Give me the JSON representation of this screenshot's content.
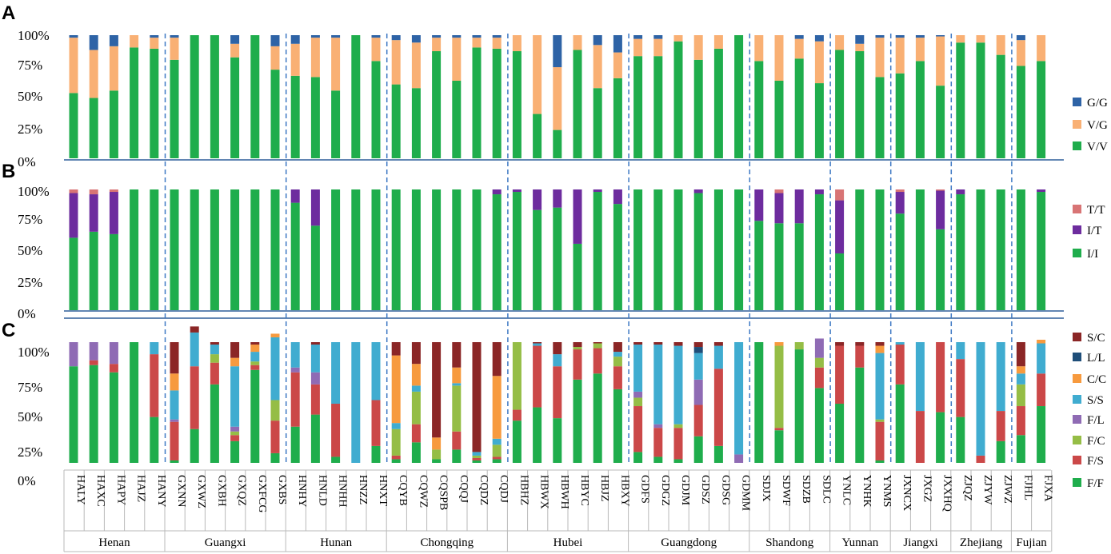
{
  "chart_data": {
    "type": "bar",
    "stacked": true,
    "colors": {
      "G/G": "#2e63a6",
      "V/G": "#f9b074",
      "V/V": "#1fad4c",
      "T/T": "#d87475",
      "I/T": "#6d2c9e",
      "I/I": "#1fad4c",
      "S/C": "#8b2626",
      "L/L": "#1f4e79",
      "C/C": "#f79a3e",
      "S/S": "#40acd0",
      "F/L": "#8f6bb4",
      "F/C": "#95bd46",
      "F/S": "#cb4848",
      "F/F": "#1fad4c"
    },
    "categories": [
      "HALY",
      "HAXC",
      "HAPY",
      "HAJZ",
      "HANY",
      "GXNN",
      "GXWZ",
      "GXBH",
      "GXQZ",
      "GXFCG",
      "GXBS",
      "HNHY",
      "HNLD",
      "HNHH",
      "HNZZ",
      "HNXT",
      "CQYB",
      "CQWZ",
      "CQSPB",
      "CQQJ",
      "CQDZ",
      "CQDJ",
      "HBHZ",
      "HBWX",
      "HBWH",
      "HBYC",
      "HBJZ",
      "HBXY",
      "GDFS",
      "GDGZ",
      "GDJM",
      "GDSZ",
      "GDSG",
      "GDMM",
      "SDJX",
      "SDWF",
      "SDZB",
      "SDLC",
      "YNLC",
      "YNHK",
      "YNMS",
      "JXNCX",
      "JXGZ",
      "JXXHQ",
      "ZJQZ",
      "ZJYW",
      "ZJWZ",
      "FJHL",
      "FJXA"
    ],
    "groups": [
      {
        "name": "Henan",
        "count": 5
      },
      {
        "name": "Guangxi",
        "count": 6
      },
      {
        "name": "Hunan",
        "count": 5
      },
      {
        "name": "Chongqing",
        "count": 6
      },
      {
        "name": "Hubei",
        "count": 6
      },
      {
        "name": "Guangdong",
        "count": 6
      },
      {
        "name": "Shandong",
        "count": 4
      },
      {
        "name": "Yunnan",
        "count": 3
      },
      {
        "name": "Jiangxi",
        "count": 3
      },
      {
        "name": "Zhejiang",
        "count": 3
      },
      {
        "name": "Fujian",
        "count": 2
      }
    ],
    "panels": [
      {
        "label": "A",
        "yticks": [
          "100%",
          "75%",
          "50%",
          "25%",
          "0%"
        ],
        "ylim": [
          0,
          100
        ],
        "legend": [
          "G/G",
          "V/G",
          "V/V"
        ],
        "stack_order": [
          "V/V",
          "V/G",
          "G/G"
        ],
        "series": {
          "V/V": [
            53,
            49,
            55,
            90,
            89,
            80,
            100,
            100,
            82,
            100,
            72,
            67,
            66,
            55,
            100,
            79,
            60,
            57,
            87,
            63,
            90,
            89,
            87,
            36,
            23,
            88,
            57,
            65,
            83,
            83,
            95,
            80,
            89,
            100,
            79,
            63,
            81,
            61,
            88,
            87,
            66,
            69,
            79,
            59,
            94,
            94,
            84,
            75,
            79
          ],
          "V/G": [
            45,
            39,
            36,
            10,
            9,
            18,
            0,
            0,
            11,
            0,
            19,
            26,
            32,
            43,
            0,
            19,
            36,
            37,
            11,
            35,
            8,
            9,
            13,
            64,
            51,
            12,
            35,
            21,
            14,
            14,
            5,
            20,
            11,
            0,
            21,
            37,
            16,
            34,
            12,
            6,
            32,
            29,
            19,
            40,
            6,
            6,
            16,
            21,
            21
          ],
          "G/G": [
            2,
            12,
            9,
            0,
            2,
            2,
            0,
            0,
            7,
            0,
            9,
            7,
            2,
            2,
            0,
            2,
            4,
            6,
            2,
            2,
            2,
            2,
            0,
            0,
            26,
            0,
            8,
            14,
            3,
            3,
            0,
            0,
            0,
            0,
            0,
            0,
            3,
            5,
            0,
            7,
            2,
            2,
            2,
            1,
            0,
            0,
            0,
            4,
            0
          ]
        }
      },
      {
        "label": "B",
        "yticks": [
          "100%",
          "75%",
          "50%",
          "25%",
          "0%"
        ],
        "ylim": [
          0,
          100
        ],
        "legend": [
          "T/T",
          "I/T",
          "I/I"
        ],
        "stack_order": [
          "I/I",
          "I/T",
          "T/T"
        ],
        "series": {
          "I/I": [
            60,
            65,
            63,
            100,
            100,
            100,
            100,
            100,
            100,
            100,
            100,
            89,
            70,
            100,
            100,
            100,
            100,
            100,
            100,
            100,
            100,
            96,
            98,
            83,
            85,
            55,
            98,
            88,
            100,
            100,
            100,
            97,
            100,
            100,
            74,
            72,
            72,
            96,
            47,
            100,
            100,
            80,
            100,
            67,
            96,
            100,
            100,
            100,
            98
          ],
          "I/T": [
            37,
            31,
            35,
            0,
            0,
            0,
            0,
            0,
            0,
            0,
            0,
            11,
            30,
            0,
            0,
            0,
            0,
            0,
            0,
            0,
            0,
            4,
            2,
            17,
            15,
            45,
            2,
            12,
            0,
            0,
            0,
            3,
            0,
            0,
            26,
            25,
            28,
            4,
            44,
            0,
            0,
            18,
            0,
            32,
            4,
            0,
            0,
            0,
            2
          ],
          "T/T": [
            3,
            4,
            2,
            0,
            0,
            0,
            0,
            0,
            0,
            0,
            0,
            0,
            0,
            0,
            0,
            0,
            0,
            0,
            0,
            0,
            0,
            0,
            0,
            0,
            0,
            0,
            0,
            0,
            0,
            0,
            0,
            0,
            0,
            0,
            0,
            3,
            0,
            0,
            9,
            0,
            0,
            2,
            0,
            1,
            0,
            0,
            0,
            0,
            0
          ]
        }
      },
      {
        "label": "C",
        "yticks": [
          "100%",
          "75%",
          "50%",
          "25%",
          "0%"
        ],
        "ylim": [
          0,
          100
        ],
        "legend": [
          "S/C",
          "L/L",
          "C/C",
          "S/S",
          "F/L",
          "F/C",
          "F/S",
          "F/F"
        ],
        "stack_order": [
          "F/F",
          "F/S",
          "F/C",
          "F/L",
          "S/S",
          "C/C",
          "L/L",
          "S/C"
        ],
        "series": {
          "F/F": [
            80,
            81,
            75,
            100,
            38,
            2,
            28,
            65,
            18,
            77,
            8,
            30,
            40,
            5,
            0,
            14,
            3,
            17,
            3,
            11,
            2,
            3,
            35,
            46,
            37,
            69,
            74,
            61,
            9,
            5,
            3,
            22,
            14,
            0,
            100,
            27,
            94,
            62,
            49,
            79,
            2,
            65,
            0,
            42,
            38,
            0,
            18,
            23,
            47
          ],
          "F/S": [
            0,
            4,
            7,
            0,
            52,
            32,
            52,
            18,
            5,
            4,
            27,
            45,
            25,
            44,
            0,
            38,
            3,
            15,
            0,
            15,
            2,
            2,
            9,
            51,
            43,
            25,
            21,
            19,
            38,
            24,
            26,
            26,
            64,
            0,
            0,
            2,
            0,
            17,
            48,
            18,
            32,
            33,
            43,
            58,
            48,
            6,
            25,
            24,
            27
          ],
          "F/C": [
            0,
            0,
            0,
            0,
            0,
            0,
            0,
            7,
            3,
            3,
            17,
            0,
            0,
            0,
            0,
            0,
            22,
            27,
            8,
            38,
            2,
            10,
            56,
            0,
            0,
            2,
            4,
            8,
            7,
            0,
            3,
            0,
            0,
            0,
            0,
            68,
            6,
            8,
            0,
            0,
            2,
            0,
            0,
            0,
            0,
            0,
            0,
            18,
            0
          ],
          "F/L": [
            20,
            15,
            18,
            0,
            0,
            2,
            0,
            0,
            4,
            0,
            0,
            4,
            10,
            0,
            0,
            0,
            0,
            0,
            0,
            0,
            0,
            0,
            0,
            0,
            0,
            0,
            0,
            0,
            5,
            3,
            0,
            21,
            0,
            7,
            0,
            0,
            0,
            16,
            0,
            0,
            0,
            0,
            0,
            0,
            0,
            0,
            0,
            0,
            0
          ],
          "S/S": [
            0,
            0,
            0,
            0,
            10,
            24,
            28,
            8,
            50,
            8,
            52,
            21,
            23,
            51,
            100,
            48,
            5,
            5,
            0,
            2,
            3,
            5,
            0,
            2,
            10,
            0,
            0,
            4,
            39,
            66,
            65,
            22,
            19,
            93,
            0,
            0,
            0,
            0,
            0,
            0,
            55,
            2,
            57,
            0,
            14,
            94,
            57,
            9,
            25
          ],
          "C/C": [
            0,
            0,
            0,
            0,
            0,
            14,
            0,
            0,
            7,
            6,
            3,
            0,
            0,
            0,
            0,
            0,
            56,
            18,
            10,
            13,
            0,
            52,
            0,
            0,
            0,
            0,
            0,
            0,
            0,
            0,
            0,
            0,
            0,
            0,
            0,
            3,
            0,
            0,
            0,
            0,
            6,
            0,
            0,
            0,
            0,
            0,
            0,
            6,
            3
          ],
          "L/L": [
            0,
            0,
            0,
            0,
            0,
            0,
            0,
            0,
            0,
            0,
            0,
            0,
            0,
            0,
            0,
            0,
            0,
            0,
            0,
            0,
            0,
            0,
            0,
            0,
            0,
            0,
            0,
            0,
            0,
            0,
            0,
            5,
            0,
            0,
            0,
            0,
            0,
            0,
            0,
            0,
            0,
            0,
            0,
            0,
            0,
            0,
            0,
            0,
            0
          ],
          "S/C": [
            0,
            0,
            0,
            0,
            0,
            26,
            5,
            2,
            13,
            2,
            0,
            0,
            2,
            0,
            0,
            0,
            11,
            18,
            79,
            21,
            91,
            28,
            0,
            1,
            10,
            4,
            1,
            8,
            2,
            2,
            3,
            4,
            3,
            0,
            0,
            0,
            0,
            0,
            3,
            3,
            3,
            0,
            0,
            0,
            0,
            0,
            0,
            20,
            0
          ]
        }
      }
    ]
  }
}
